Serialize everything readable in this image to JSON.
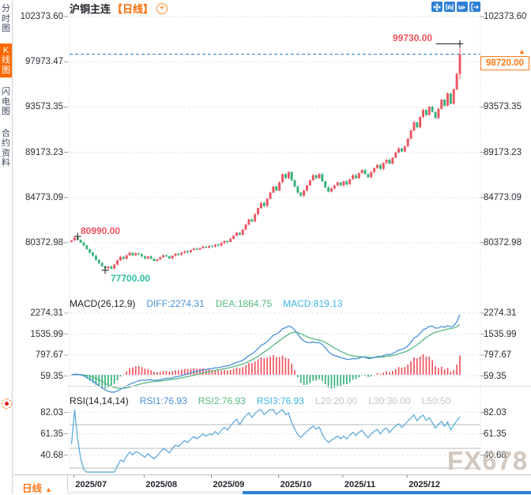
{
  "window": {
    "watermark": "FX678"
  },
  "icons": {
    "up_arrow": "▲",
    "plus": "+"
  },
  "colors": {
    "accent_orange": "#ff6a00",
    "up_red": "#ee5460",
    "down_green": "#35b178",
    "diff_blue": "#4a90d9",
    "dea_green": "#56b881",
    "macd_cyan": "#3fb6e3",
    "price_line_blue": "#2f80d8",
    "grid_gray": "#e2e5ea",
    "level_gray": "#b5b8bc"
  },
  "sidebar": {
    "items": [
      {
        "label": "分时图",
        "name": "sidebar-item-time-chart",
        "active": false
      },
      {
        "label": "K线图",
        "name": "sidebar-item-kline-chart",
        "active": true
      },
      {
        "label": "闪电图",
        "name": "sidebar-item-lightning-chart",
        "active": false
      },
      {
        "label": "合约资料",
        "name": "sidebar-item-contract-info",
        "active": false
      }
    ]
  },
  "header": {
    "title": "沪铜主连",
    "period_tag": "【日线】"
  },
  "main_chart": {
    "y_axis_labels": [
      "102373.60",
      "97973.47",
      "93573.35",
      "89173.23",
      "84773.09",
      "80372.98"
    ],
    "y_axis_values": [
      102373.6,
      97973.47,
      93573.35,
      89173.23,
      84773.09,
      80372.98
    ],
    "current_price_label": "98720.00",
    "high_marker_label": "99730.00",
    "early_high_marker_label": "80990.00",
    "low_marker_label": "77700.00",
    "x_axis_labels": [
      "2025/07",
      "2025/08",
      "2025/09",
      "2025/10",
      "2025/11",
      "2025/12"
    ]
  },
  "macd": {
    "name": "MACD(26,12,9)",
    "diff": "DIFF:2274.31",
    "dea": "DEA:1864.75",
    "macd": "MACD:819.13",
    "axis_labels": [
      "2274.31",
      "1535.99",
      "797.67",
      "59.35"
    ]
  },
  "rsi": {
    "name": "RSI(14,14,14)",
    "r1": "RSI1:76.93",
    "r2": "RSI2:76.93",
    "r3": "RSI3:76.93",
    "l20": "L20:20.00",
    "l30": "L30:30.00",
    "l50": "L50:50",
    "axis_labels": [
      "82.03",
      "61.35",
      "40.68"
    ]
  },
  "footer": {
    "period_label": "日线"
  },
  "chart_data": {
    "type": "candlestick",
    "symbol": "沪铜主连",
    "period": "日线",
    "x_month_labels": [
      "2025/07",
      "2025/08",
      "2025/09",
      "2025/10",
      "2025/11",
      "2025/12"
    ],
    "x_month_anchor_index": [
      1,
      24,
      46,
      68,
      89,
      110
    ],
    "open_first": 80450,
    "closes": [
      80600,
      80850,
      80650,
      80400,
      80100,
      79750,
      79400,
      79100,
      78700,
      78400,
      78100,
      77900,
      78050,
      77850,
      78250,
      78650,
      79000,
      78800,
      79150,
      79400,
      79150,
      79350,
      79250,
      79050,
      78850,
      79050,
      78800,
      78600,
      78750,
      78950,
      79150,
      79050,
      78850,
      79100,
      79300,
      79200,
      79400,
      79550,
      79450,
      79650,
      79800,
      79700,
      79850,
      80000,
      79900,
      80050,
      80000,
      80200,
      80100,
      80350,
      80550,
      80450,
      80750,
      81050,
      81350,
      81150,
      81650,
      82150,
      82650,
      82450,
      83150,
      83750,
      84250,
      83950,
      84650,
      85250,
      85850,
      85450,
      86250,
      87050,
      86650,
      87250,
      86450,
      85850,
      85250,
      84950,
      85450,
      85950,
      86450,
      86950,
      86650,
      87050,
      86350,
      85750,
      85350,
      85650,
      85950,
      86250,
      85950,
      86350,
      86050,
      86550,
      86950,
      86650,
      87150,
      87450,
      87050,
      86750,
      87250,
      87650,
      87950,
      87550,
      88150,
      88450,
      88050,
      88650,
      89150,
      89550,
      89250,
      89750,
      90500,
      91300,
      92100,
      91600,
      92600,
      93300,
      92800,
      93600,
      93100,
      92500,
      93400,
      94300,
      93700,
      94900,
      93900,
      95300,
      96800,
      98720
    ],
    "wick_overrides": {
      "2": {
        "high": 80990
      },
      "11": {
        "low": 77700
      },
      "127": {
        "high": 99730,
        "low": 96300
      }
    },
    "y_axis": {
      "labels": [
        "102373.60",
        "97973.47",
        "93573.35",
        "89173.23",
        "84773.09",
        "80372.98"
      ],
      "values": [
        102373.6,
        97973.47,
        93573.35,
        89173.23,
        84773.09,
        80372.98
      ]
    },
    "current_price": 98720.0,
    "annotations": [
      {
        "type": "high-marker",
        "label": "99730.00",
        "value": 99730.0,
        "candle_index": 127
      },
      {
        "type": "local-high-marker",
        "label": "80990.00",
        "value": 80990.0,
        "candle_index": 2
      },
      {
        "type": "local-low-marker",
        "label": "77700.00",
        "value": 77700.0,
        "candle_index": 11
      },
      {
        "type": "current-price-line",
        "label": "98720.00",
        "value": 98720.0
      }
    ],
    "indicators": [
      {
        "type": "macd",
        "name": "MACD(26,12,9)",
        "params": [
          26,
          12,
          9
        ],
        "shown": {
          "DIFF": 2274.31,
          "DEA": 1864.75,
          "MACD": 819.13
        },
        "axis_labels": [
          "2274.31",
          "1535.99",
          "797.67",
          "59.35"
        ],
        "axis_values": [
          2274.31,
          1535.99,
          797.67,
          59.35
        ]
      },
      {
        "type": "rsi",
        "name": "RSI(14,14,14)",
        "params": [
          14,
          14,
          14
        ],
        "shown": {
          "RSI1": 76.93,
          "RSI2": 76.93,
          "RSI3": 76.93,
          "L20": 20.0,
          "L30": 30.0,
          "L50": 50
        },
        "axis_labels": [
          "82.03",
          "61.35",
          "40.68"
        ],
        "axis_values": [
          82.03,
          61.35,
          40.68
        ]
      }
    ]
  }
}
